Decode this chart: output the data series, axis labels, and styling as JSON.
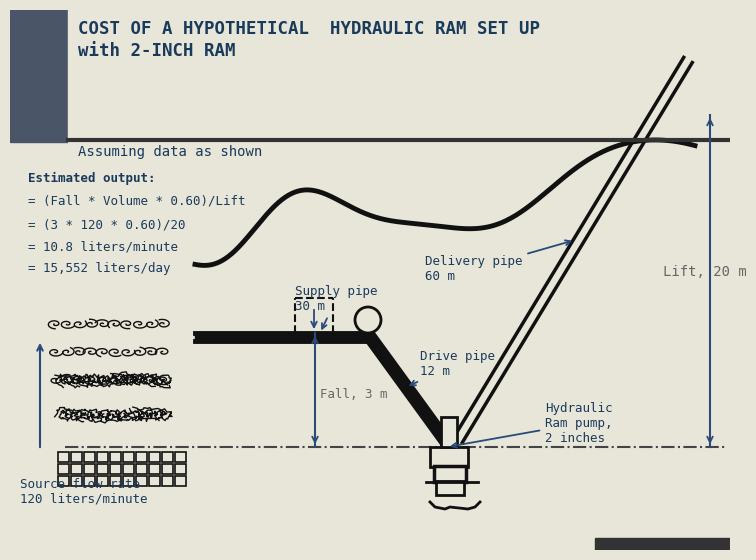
{
  "title_line1": "COST OF A HYPOTHETICAL  HYDRAULIC RAM SET UP",
  "title_line2": "with 2-INCH RAM",
  "subtitle": "Assuming data as shown",
  "bg_color": "#e8e6d8",
  "header_bg": "#4a5568",
  "text_color": "#1a3a5c",
  "line_color": "#111111",
  "dim_color": "#2a4a7a",
  "estimated_output_lines": [
    "Estimated output:",
    "= (Fall * Volume * 0.60)/Lift",
    "= (3 * 120 * 0.60)/20",
    "= 10.8 liters/minute",
    "= 15,552 liters/day"
  ],
  "labels": {
    "delivery_pipe": "Delivery pipe\n60 m",
    "supply_pipe": "Supply pipe\n30 m",
    "drive_pipe": "Drive pipe\n12 m",
    "fall": "Fall, 3 m",
    "lift": "Lift, 20 m",
    "hydraulic_ram": "Hydraulic\nRam pump,\n2 inches",
    "source_flow": "Source flow rate\n120 liters/minute"
  }
}
